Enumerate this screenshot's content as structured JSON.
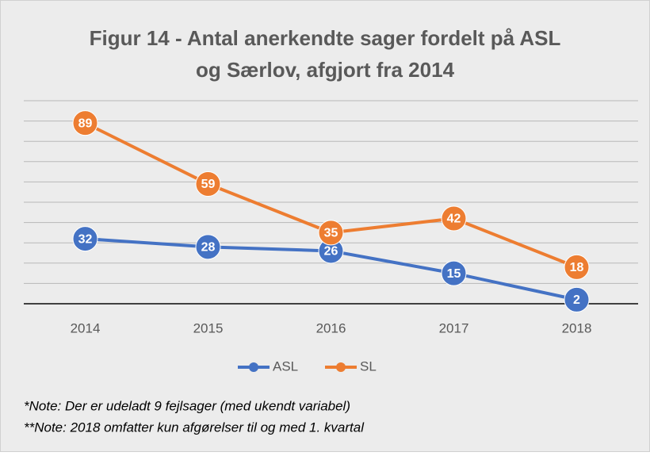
{
  "chart_data": {
    "type": "line",
    "title": [
      "Figur 14 - Antal anerkendte sager fordelt på ASL",
      "og Særlov, afgjort fra 2014"
    ],
    "categories": [
      "2014",
      "2015",
      "2016",
      "2017",
      "2018"
    ],
    "series": [
      {
        "name": "ASL",
        "color": "#4472c4",
        "values": [
          32,
          28,
          26,
          15,
          2
        ]
      },
      {
        "name": "SL",
        "color": "#ed7d31",
        "values": [
          89,
          59,
          35,
          42,
          18
        ]
      }
    ],
    "ylim": [
      0,
      100
    ],
    "yticks": [
      0,
      10,
      20,
      30,
      40,
      50,
      60,
      70,
      80,
      90,
      100
    ],
    "grid": true,
    "legend": "bottom",
    "notes": [
      "*Note: Der er udeladt 9 fejlsager (med ukendt variabel)",
      "**Note: 2018 omfatter kun afgørelser til og med 1. kvartal"
    ]
  }
}
